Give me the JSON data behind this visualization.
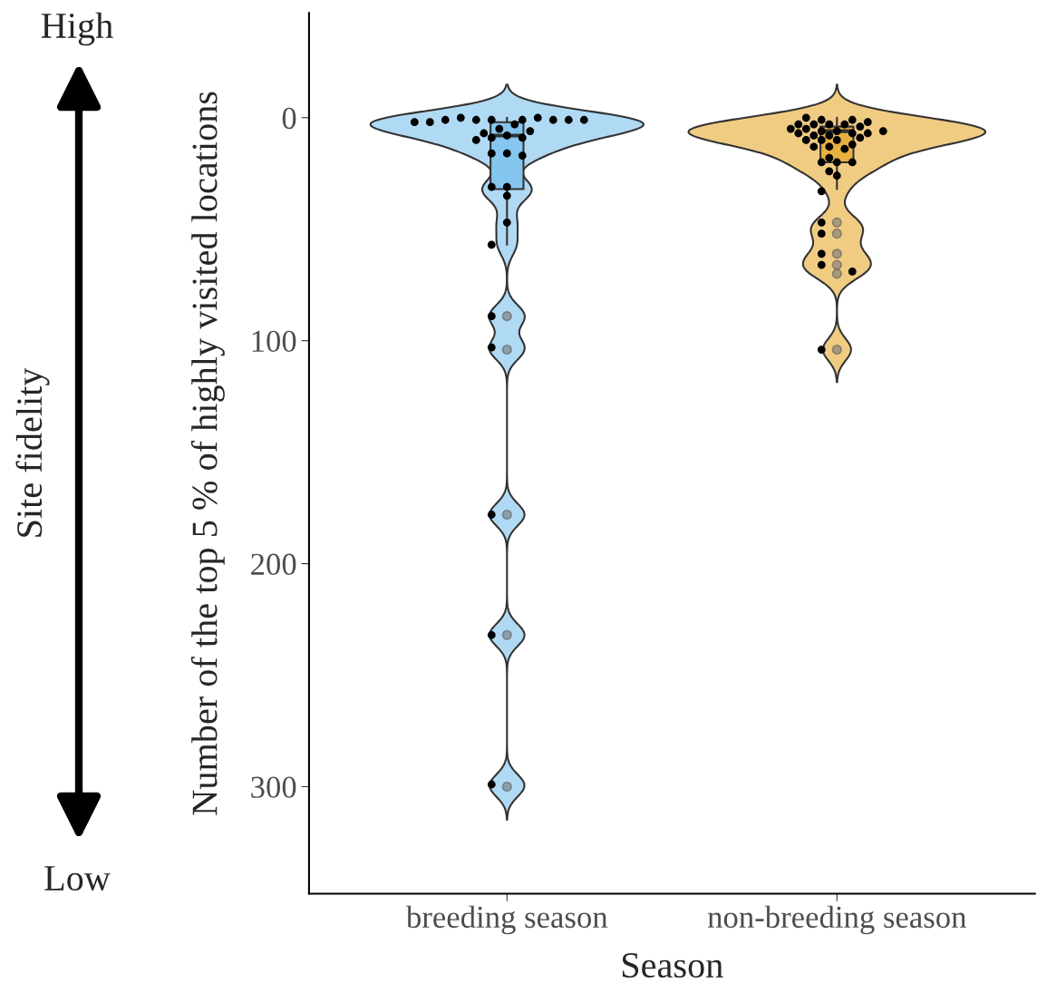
{
  "chart_data": {
    "type": "box",
    "xlabel": "Season",
    "ylabel": "Number of the top 5 % of highly visited locations",
    "categories": [
      "breeding season",
      "non-breeding season"
    ],
    "colors": [
      "#85c6ee",
      "#e8b040"
    ],
    "boxes": [
      {
        "low": 0,
        "q1": 2,
        "median": 8,
        "q3": 32,
        "high": 57,
        "outliers": [
          89,
          104,
          178,
          232,
          300
        ]
      },
      {
        "low": 0,
        "q1": 4,
        "median": 6,
        "q3": 20,
        "high": 32,
        "outliers": [
          47,
          52,
          61,
          66,
          70,
          104
        ]
      }
    ],
    "series": [
      {
        "type": "scatter",
        "color": "#000000",
        "x": [
          "breeding season",
          "breeding season",
          "breeding season",
          "breeding season",
          "breeding season",
          "breeding season",
          "breeding season",
          "breeding season",
          "breeding season",
          "breeding season",
          "breeding season",
          "breeding season",
          "breeding season",
          "breeding season",
          "breeding season",
          "breeding season",
          "breeding season",
          "breeding season",
          "breeding season",
          "breeding season",
          "breeding season",
          "breeding season",
          "breeding season",
          "breeding season",
          "breeding season",
          "breeding season",
          "breeding season",
          "breeding season",
          "breeding season",
          "breeding season",
          "breeding season",
          "breeding season",
          "non-breeding season",
          "non-breeding season",
          "non-breeding season",
          "non-breeding season",
          "non-breeding season",
          "non-breeding season",
          "non-breeding season",
          "non-breeding season",
          "non-breeding season",
          "non-breeding season",
          "non-breeding season",
          "non-breeding season",
          "non-breeding season",
          "non-breeding season",
          "non-breeding season",
          "non-breeding season",
          "non-breeding season",
          "non-breeding season",
          "non-breeding season",
          "non-breeding season",
          "non-breeding season",
          "non-breeding season",
          "non-breeding season",
          "non-breeding season",
          "non-breeding season",
          "non-breeding season",
          "non-breeding season",
          "non-breeding season",
          "non-breeding season",
          "non-breeding season",
          "non-breeding season",
          "non-breeding season",
          "non-breeding season",
          "non-breeding season",
          "non-breeding season",
          "non-breeding season",
          "non-breeding season",
          "non-breeding season",
          "non-breeding season",
          "non-breeding season"
        ],
        "values": [
          1,
          1,
          16,
          16,
          8,
          9,
          9,
          17,
          35,
          31,
          1,
          0,
          0,
          31,
          1,
          1,
          5,
          10,
          1,
          2,
          1,
          3,
          7,
          6,
          47,
          57,
          89,
          103,
          178,
          232,
          299,
          2,
          1,
          10,
          6,
          6,
          8,
          13,
          3,
          14,
          3,
          3,
          4,
          1,
          7,
          5,
          7,
          10,
          7,
          13,
          20,
          3,
          8,
          6,
          9,
          0,
          2,
          5,
          10,
          12,
          18,
          20,
          20,
          26,
          24,
          33,
          52,
          61,
          66,
          47,
          69,
          104
        ]
      }
    ],
    "ylim": [
      348,
      -47
    ],
    "yticks": [
      0,
      100,
      200,
      300
    ],
    "annotations": [
      "High",
      "Low",
      "Site fidelity"
    ]
  }
}
